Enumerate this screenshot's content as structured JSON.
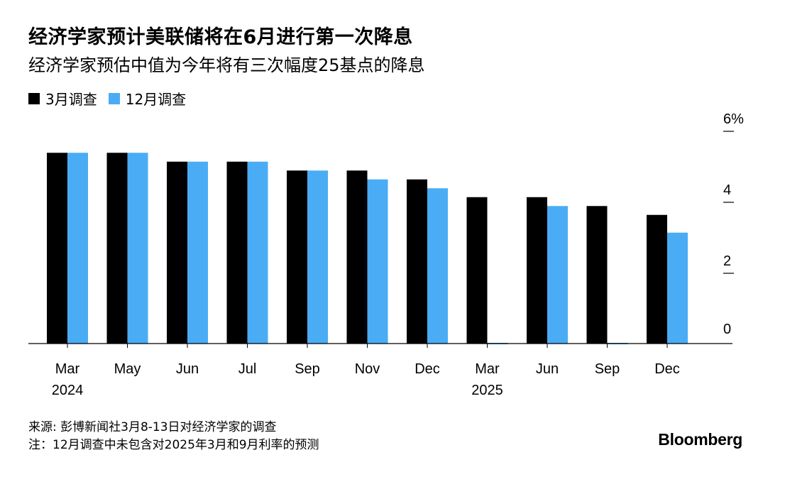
{
  "title": "经济学家预计美联储将在6月进行第一次降息",
  "subtitle": "经济学家预估中值为今年将有三次幅度25基点的降息",
  "legend": {
    "march": "3月调查",
    "december": "12月调查"
  },
  "colors": {
    "march": "#000000",
    "december": "#4aacf5",
    "axis": "#000000"
  },
  "chart_data": {
    "type": "bar",
    "categories": [
      "Mar 2024",
      "May",
      "Jun",
      "Jul",
      "Sep",
      "Nov",
      "Dec",
      "Mar 2025",
      "Jun",
      "Sep",
      "Dec"
    ],
    "tick_labels": [
      [
        "Mar",
        "2024"
      ],
      [
        "May"
      ],
      [
        "Jun"
      ],
      [
        "Jul"
      ],
      [
        "Sep"
      ],
      [
        "Nov"
      ],
      [
        "Dec"
      ],
      [
        "Mar",
        "2025"
      ],
      [
        "Jun"
      ],
      [
        "Sep"
      ],
      [
        "Dec"
      ]
    ],
    "series": [
      {
        "name": "3月调查",
        "values": [
          5.375,
          5.375,
          5.125,
          5.125,
          4.875,
          4.875,
          4.625,
          4.125,
          4.125,
          3.875,
          3.625
        ]
      },
      {
        "name": "12月调查",
        "values": [
          5.375,
          5.375,
          5.125,
          5.125,
          4.875,
          4.625,
          4.375,
          0,
          3.875,
          0,
          3.125
        ]
      }
    ],
    "y_ticks": [
      "0",
      "2",
      "4",
      "6%"
    ],
    "ylim": [
      0,
      6
    ],
    "y_axis_position": "right",
    "legend_position": "top-left",
    "grid": false
  },
  "footer": {
    "source": "来源: 彭博新闻社3月8-13日对经济学家的调查",
    "note": "注：12月调查中未包含对2025年3月和9月利率的预测"
  },
  "brand": "Bloomberg"
}
